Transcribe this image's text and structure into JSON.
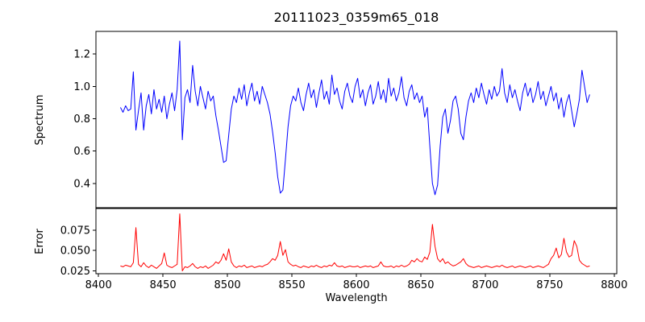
{
  "title": "20111023_0359m65_018",
  "colors": {
    "spectrum_line": "#0000ff",
    "error_line": "#ff0000",
    "axis": "#000000",
    "background": "#ffffff"
  },
  "chart_data": {
    "type": "line",
    "title": "20111023_0359m65_018",
    "xlabel": "Wavelength",
    "grid": false,
    "legend": null,
    "xlim": [
      8398,
      8802
    ],
    "xticks": [
      8400,
      8450,
      8500,
      8550,
      8600,
      8650,
      8700,
      8750,
      8800
    ],
    "xtick_labels": [
      "8400",
      "8450",
      "8500",
      "8550",
      "8600",
      "8650",
      "8700",
      "8750",
      "8800"
    ],
    "x": [
      8417,
      8419,
      8421,
      8423,
      8425,
      8427,
      8429,
      8431,
      8433,
      8435,
      8437,
      8439,
      8441,
      8443,
      8445,
      8447,
      8449,
      8451,
      8453,
      8455,
      8457,
      8459,
      8461,
      8463,
      8465,
      8467,
      8469,
      8471,
      8473,
      8475,
      8477,
      8479,
      8481,
      8483,
      8485,
      8487,
      8489,
      8491,
      8493,
      8495,
      8497,
      8499,
      8501,
      8503,
      8505,
      8507,
      8509,
      8511,
      8513,
      8515,
      8517,
      8519,
      8521,
      8523,
      8525,
      8527,
      8529,
      8531,
      8533,
      8535,
      8537,
      8539,
      8541,
      8543,
      8545,
      8547,
      8549,
      8551,
      8553,
      8555,
      8557,
      8559,
      8561,
      8563,
      8565,
      8567,
      8569,
      8571,
      8573,
      8575,
      8577,
      8579,
      8581,
      8583,
      8585,
      8587,
      8589,
      8591,
      8593,
      8595,
      8597,
      8599,
      8601,
      8603,
      8605,
      8607,
      8609,
      8611,
      8613,
      8615,
      8617,
      8619,
      8621,
      8623,
      8625,
      8627,
      8629,
      8631,
      8633,
      8635,
      8637,
      8639,
      8641,
      8643,
      8645,
      8647,
      8649,
      8651,
      8653,
      8655,
      8657,
      8659,
      8661,
      8663,
      8665,
      8667,
      8669,
      8671,
      8673,
      8675,
      8677,
      8679,
      8681,
      8683,
      8685,
      8687,
      8689,
      8691,
      8693,
      8695,
      8697,
      8699,
      8701,
      8703,
      8705,
      8707,
      8709,
      8711,
      8713,
      8715,
      8717,
      8719,
      8721,
      8723,
      8725,
      8727,
      8729,
      8731,
      8733,
      8735,
      8737,
      8739,
      8741,
      8743,
      8745,
      8747,
      8749,
      8751,
      8753,
      8755,
      8757,
      8759,
      8761,
      8763,
      8765,
      8767,
      8769,
      8771,
      8773,
      8775,
      8777,
      8779,
      8781
    ],
    "panels": [
      {
        "name": "spectrum",
        "ylabel": "Spectrum",
        "ylim": [
          0.25,
          1.34
        ],
        "yticks": [
          0.4,
          0.6,
          0.8,
          1.0,
          1.2
        ],
        "ytick_labels": [
          "0.4",
          "0.6",
          "0.8",
          "1.0",
          "1.2"
        ],
        "color": "#0000ff",
        "values": [
          0.87,
          0.84,
          0.88,
          0.85,
          0.86,
          1.09,
          0.73,
          0.85,
          0.96,
          0.73,
          0.88,
          0.95,
          0.83,
          0.98,
          0.86,
          0.92,
          0.84,
          0.94,
          0.8,
          0.89,
          0.96,
          0.85,
          0.98,
          1.28,
          0.67,
          0.93,
          0.98,
          0.9,
          1.13,
          0.97,
          0.88,
          1.0,
          0.93,
          0.86,
          0.97,
          0.91,
          0.94,
          0.82,
          0.73,
          0.63,
          0.53,
          0.54,
          0.7,
          0.86,
          0.94,
          0.9,
          0.99,
          0.92,
          1.01,
          0.88,
          0.96,
          1.02,
          0.91,
          0.97,
          0.89,
          1.0,
          0.95,
          0.9,
          0.83,
          0.72,
          0.59,
          0.44,
          0.34,
          0.36,
          0.55,
          0.75,
          0.88,
          0.94,
          0.91,
          0.99,
          0.9,
          0.85,
          0.95,
          1.02,
          0.93,
          0.98,
          0.87,
          0.96,
          1.04,
          0.92,
          0.97,
          0.89,
          1.07,
          0.95,
          0.99,
          0.91,
          0.86,
          0.97,
          1.02,
          0.94,
          0.9,
          1.0,
          1.05,
          0.93,
          0.98,
          0.88,
          0.96,
          1.01,
          0.89,
          0.94,
          1.03,
          0.92,
          0.98,
          0.9,
          1.05,
          0.94,
          0.99,
          0.91,
          0.96,
          1.06,
          0.93,
          0.88,
          0.97,
          1.01,
          0.92,
          0.96,
          0.9,
          0.94,
          0.81,
          0.87,
          0.63,
          0.4,
          0.33,
          0.39,
          0.63,
          0.81,
          0.86,
          0.71,
          0.79,
          0.91,
          0.94,
          0.86,
          0.71,
          0.67,
          0.81,
          0.91,
          0.96,
          0.9,
          0.99,
          0.93,
          1.02,
          0.95,
          0.89,
          0.98,
          0.92,
          1.0,
          0.94,
          0.97,
          1.11,
          0.96,
          0.9,
          1.01,
          0.93,
          0.98,
          0.91,
          0.85,
          0.96,
          1.02,
          0.94,
          0.99,
          0.9,
          0.95,
          1.03,
          0.92,
          0.97,
          0.88,
          0.94,
          1.0,
          0.91,
          0.96,
          0.86,
          0.93,
          0.81,
          0.9,
          0.95,
          0.85,
          0.75,
          0.83,
          0.92,
          1.1,
          1.0,
          0.9,
          0.95
        ]
      },
      {
        "name": "error",
        "ylabel": "Error",
        "ylim": [
          0.0215,
          0.1015
        ],
        "yticks": [
          0.025,
          0.05,
          0.075
        ],
        "ytick_labels": [
          "0.025",
          "0.050",
          "0.075"
        ],
        "color": "#ff0000",
        "values": [
          0.031,
          0.03,
          0.032,
          0.031,
          0.03,
          0.035,
          0.078,
          0.033,
          0.03,
          0.035,
          0.031,
          0.029,
          0.032,
          0.03,
          0.028,
          0.031,
          0.034,
          0.047,
          0.032,
          0.03,
          0.029,
          0.031,
          0.033,
          0.095,
          0.025,
          0.03,
          0.029,
          0.031,
          0.034,
          0.03,
          0.028,
          0.03,
          0.029,
          0.031,
          0.028,
          0.03,
          0.032,
          0.036,
          0.034,
          0.038,
          0.046,
          0.038,
          0.052,
          0.036,
          0.031,
          0.029,
          0.031,
          0.03,
          0.032,
          0.029,
          0.03,
          0.031,
          0.029,
          0.03,
          0.031,
          0.03,
          0.032,
          0.033,
          0.036,
          0.04,
          0.038,
          0.044,
          0.061,
          0.044,
          0.051,
          0.036,
          0.033,
          0.031,
          0.032,
          0.03,
          0.029,
          0.031,
          0.03,
          0.029,
          0.031,
          0.03,
          0.032,
          0.03,
          0.029,
          0.031,
          0.03,
          0.032,
          0.031,
          0.035,
          0.031,
          0.03,
          0.031,
          0.029,
          0.03,
          0.031,
          0.03,
          0.03,
          0.031,
          0.029,
          0.03,
          0.031,
          0.03,
          0.031,
          0.029,
          0.03,
          0.031,
          0.036,
          0.031,
          0.03,
          0.03,
          0.031,
          0.029,
          0.031,
          0.03,
          0.032,
          0.03,
          0.031,
          0.033,
          0.038,
          0.036,
          0.04,
          0.037,
          0.036,
          0.042,
          0.039,
          0.048,
          0.082,
          0.055,
          0.04,
          0.036,
          0.04,
          0.034,
          0.036,
          0.033,
          0.031,
          0.032,
          0.034,
          0.036,
          0.04,
          0.034,
          0.031,
          0.03,
          0.029,
          0.03,
          0.031,
          0.029,
          0.03,
          0.031,
          0.03,
          0.029,
          0.03,
          0.031,
          0.03,
          0.032,
          0.03,
          0.029,
          0.03,
          0.031,
          0.029,
          0.03,
          0.031,
          0.03,
          0.029,
          0.03,
          0.031,
          0.029,
          0.03,
          0.031,
          0.03,
          0.029,
          0.031,
          0.033,
          0.04,
          0.044,
          0.053,
          0.041,
          0.045,
          0.065,
          0.048,
          0.042,
          0.044,
          0.062,
          0.055,
          0.038,
          0.034,
          0.032,
          0.03,
          0.031
        ]
      }
    ]
  }
}
